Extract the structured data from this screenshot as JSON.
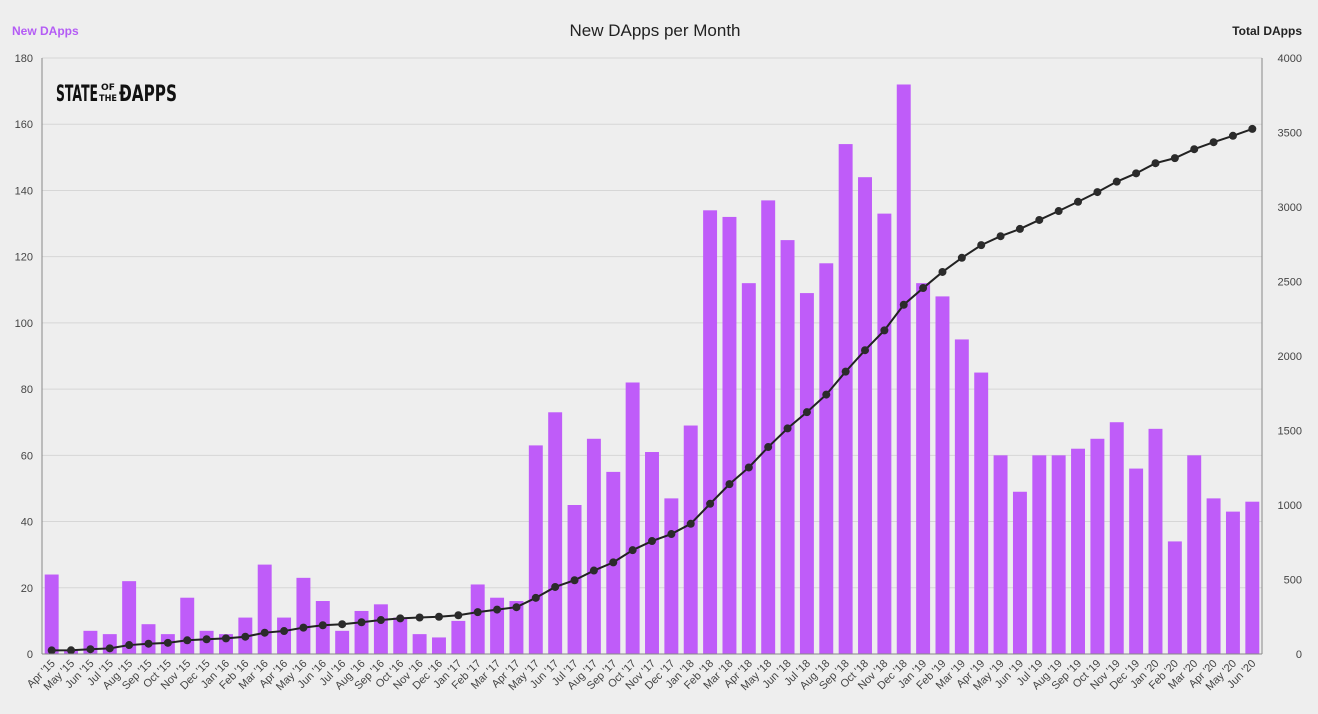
{
  "colors": {
    "background": "#eeeeee",
    "bar": "#bf5cf9",
    "line": "#222222",
    "legend_left": "#b45cf5"
  },
  "logo": {
    "text_state": "STATE",
    "text_of": "OF",
    "text_the": "THE",
    "text_dapps": "ÐAPPS"
  },
  "chart_data": {
    "type": "bar",
    "title": "New DApps per Month",
    "legend": {
      "left_label": "New DApps",
      "right_label": "Total DApps"
    },
    "y_left": {
      "min": 0,
      "max": 180,
      "ticks": [
        0,
        20,
        40,
        60,
        80,
        100,
        120,
        140,
        160,
        180
      ]
    },
    "y_right": {
      "min": 0,
      "max": 4000,
      "ticks": [
        0,
        500,
        1000,
        1500,
        2000,
        2500,
        3000,
        3500,
        4000
      ]
    },
    "grid": true,
    "categories": [
      "Apr '15",
      "May '15",
      "Jun '15",
      "Jul '15",
      "Aug '15",
      "Sep '15",
      "Oct '15",
      "Nov '15",
      "Dec '15",
      "Jan '16",
      "Feb '16",
      "Mar '16",
      "Apr '16",
      "May '16",
      "Jun '16",
      "Jul '16",
      "Aug '16",
      "Sep '16",
      "Oct '16",
      "Nov '16",
      "Dec '16",
      "Jan '17",
      "Feb '17",
      "Mar '17",
      "Apr '17",
      "May '17",
      "Jun '17",
      "Jul '17",
      "Aug '17",
      "Sep '17",
      "Oct '17",
      "Nov '17",
      "Dec '17",
      "Jan '18",
      "Feb '18",
      "Mar '18",
      "Apr '18",
      "May '18",
      "Jun '18",
      "Jul '18",
      "Aug '18",
      "Sep '18",
      "Oct '18",
      "Nov '18",
      "Dec '18",
      "Jan '19",
      "Feb '19",
      "Mar '19",
      "Apr '19",
      "May '19",
      "Jun '19",
      "Jul '19",
      "Aug '19",
      "Sep '19",
      "Oct '19",
      "Nov '19",
      "Dec '19",
      "Jan '20",
      "Feb '20",
      "Mar '20",
      "Apr '20",
      "May '20",
      "Jun '20"
    ],
    "series": [
      {
        "name": "New DApps",
        "type": "bar",
        "axis": "left",
        "values": [
          24,
          1,
          7,
          6,
          22,
          9,
          6,
          17,
          7,
          6,
          11,
          27,
          11,
          23,
          16,
          7,
          13,
          15,
          11,
          6,
          5,
          10,
          21,
          17,
          16,
          63,
          73,
          45,
          65,
          55,
          82,
          61,
          47,
          69,
          134,
          132,
          112,
          137,
          125,
          109,
          118,
          154,
          144,
          133,
          172,
          112,
          108,
          95,
          85,
          60,
          49,
          60,
          60,
          62,
          65,
          70,
          56,
          68,
          34,
          60,
          47,
          43,
          46
        ]
      },
      {
        "name": "Total DApps",
        "type": "line",
        "axis": "right",
        "values": [
          24,
          25,
          32,
          38,
          60,
          69,
          75,
          92,
          99,
          105,
          116,
          143,
          154,
          177,
          193,
          200,
          213,
          228,
          239,
          245,
          250,
          260,
          281,
          298,
          314,
          377,
          450,
          495,
          560,
          615,
          697,
          758,
          805,
          874,
          1008,
          1140,
          1252,
          1389,
          1514,
          1623,
          1741,
          1895,
          2039,
          2172,
          2344,
          2456,
          2564,
          2659,
          2744,
          2804,
          2853,
          2913,
          2973,
          3035,
          3100,
          3170,
          3226,
          3294,
          3328,
          3388,
          3435,
          3478,
          3524
        ]
      }
    ]
  }
}
